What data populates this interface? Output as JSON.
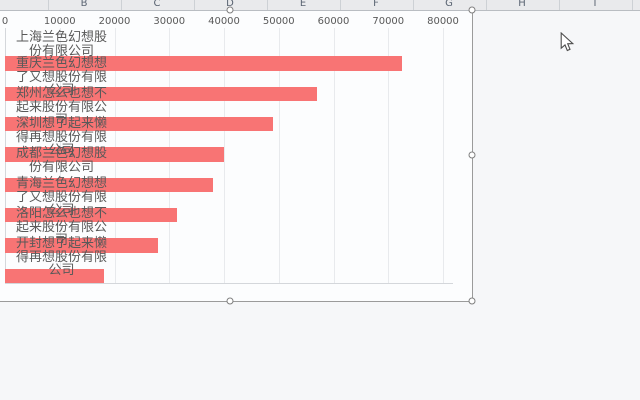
{
  "spreadsheet": {
    "column_headers": [
      "B",
      "C",
      "D",
      "E",
      "F",
      "G",
      "H",
      "I"
    ]
  },
  "chart_data": {
    "type": "bar",
    "orientation": "horizontal",
    "title": "",
    "xlabel": "",
    "ylabel": "",
    "categories": [
      "上海兰色幻想股份有限公司",
      "重庆兰色幻想想了又想股份有限公司",
      "郑州怎么也想不起来股份有限公司",
      "深圳想了起来懒得再想股份有限公司",
      "成都兰色幻想股份有限公司",
      "青海兰色幻想想了又想股份有限公司",
      "洛阳怎么也想不起来股份有限公司",
      "开封想了起来懒得再想股份有限公司"
    ],
    "values": [
      72500,
      57000,
      49000,
      40000,
      38000,
      31500,
      28000,
      18000
    ],
    "xlim": [
      0,
      80000
    ],
    "x_ticks": [
      "0",
      "10000",
      "20000",
      "30000",
      "40000",
      "50000",
      "60000",
      "70000",
      "80000"
    ],
    "grid": true,
    "legend": "none",
    "bar_color": "#f87474",
    "axis_text_color": "#595959"
  }
}
